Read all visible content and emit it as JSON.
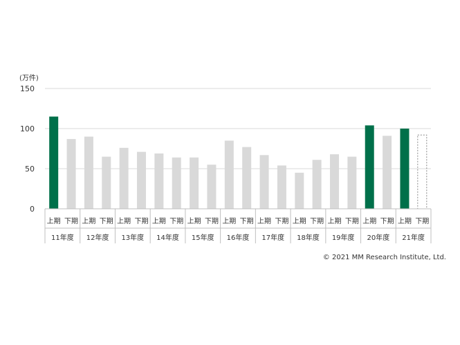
{
  "chart_data": {
    "type": "bar",
    "unit_label": "(万件)",
    "ylim": [
      0,
      150
    ],
    "yticks": [
      0,
      50,
      100,
      150
    ],
    "grid": true,
    "years": [
      "11年度",
      "12年度",
      "13年度",
      "14年度",
      "15年度",
      "16年度",
      "17年度",
      "18年度",
      "19年度",
      "20年度",
      "21年度"
    ],
    "half_labels": [
      "上期",
      "下期"
    ],
    "bars": [
      {
        "year": "11年度",
        "half": "上期",
        "value": 115,
        "highlight": true
      },
      {
        "year": "11年度",
        "half": "下期",
        "value": 87
      },
      {
        "year": "12年度",
        "half": "上期",
        "value": 90
      },
      {
        "year": "12年度",
        "half": "下期",
        "value": 65
      },
      {
        "year": "13年度",
        "half": "上期",
        "value": 76
      },
      {
        "year": "13年度",
        "half": "下期",
        "value": 71
      },
      {
        "year": "14年度",
        "half": "上期",
        "value": 69
      },
      {
        "year": "14年度",
        "half": "下期",
        "value": 64
      },
      {
        "year": "15年度",
        "half": "上期",
        "value": 64
      },
      {
        "year": "15年度",
        "half": "下期",
        "value": 55
      },
      {
        "year": "16年度",
        "half": "上期",
        "value": 85
      },
      {
        "year": "16年度",
        "half": "下期",
        "value": 77
      },
      {
        "year": "17年度",
        "half": "上期",
        "value": 67
      },
      {
        "year": "17年度",
        "half": "下期",
        "value": 54
      },
      {
        "year": "18年度",
        "half": "上期",
        "value": 45
      },
      {
        "year": "18年度",
        "half": "下期",
        "value": 61
      },
      {
        "year": "19年度",
        "half": "上期",
        "value": 68
      },
      {
        "year": "19年度",
        "half": "下期",
        "value": 65
      },
      {
        "year": "20年度",
        "half": "上期",
        "value": 104,
        "highlight": true
      },
      {
        "year": "20年度",
        "half": "下期",
        "value": 91
      },
      {
        "year": "21年度",
        "half": "上期",
        "value": 100,
        "highlight": true
      },
      {
        "year": "21年度",
        "half": "下期",
        "value": 92,
        "forecast": true
      }
    ]
  },
  "colors": {
    "highlight": "#00704A",
    "normal": "#D9D9D9",
    "grid": "#D9D9D9",
    "axis": "#BFBFBF",
    "forecast_outline": "#888888"
  },
  "copyright": "© 2021 MM Research Institute, Ltd."
}
